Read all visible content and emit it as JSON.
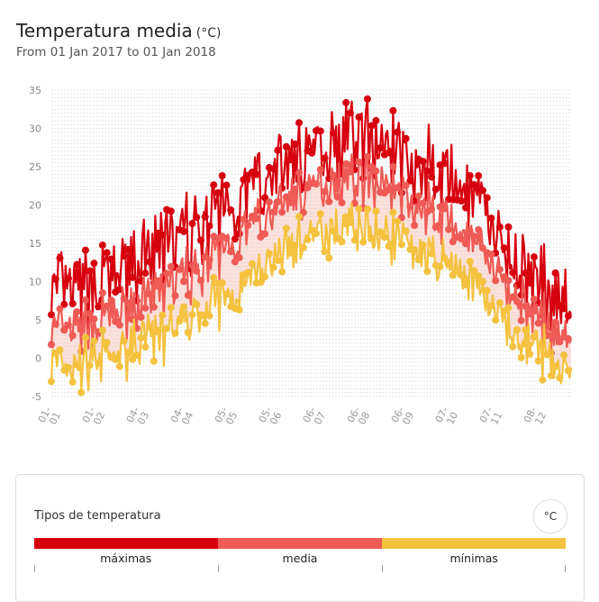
{
  "header": {
    "title": "Temperatura media",
    "unit": "(°C)",
    "subtitle": "From 01 Jan 2017 to 01 Jan 2018"
  },
  "colors": {
    "max": "#d7000f",
    "media": "#ef5a55",
    "min": "#f4c23e",
    "band": "#f6c8bf",
    "grid": "#c8c8c8",
    "axis": "#999999"
  },
  "legend": {
    "title": "Tipos de temperatura",
    "unit_button": "°C",
    "items": [
      {
        "label": "máximas",
        "color": "#d7000f",
        "share": 0.345
      },
      {
        "label": "media",
        "color": "#ef5a55",
        "share": 0.31
      },
      {
        "label": "mínimas",
        "color": "#f4c23e",
        "share": 0.345
      }
    ]
  },
  "chart_data": {
    "type": "line",
    "title": "Temperatura media",
    "x_start": "2017-01-01",
    "x_end": "2018-01-01",
    "x_tick_labels": [
      "01-01",
      "01-02",
      "04-03",
      "04-04",
      "05-05",
      "05-06",
      "06-07",
      "06-08",
      "06-09",
      "07-10",
      "07-11",
      "08-12"
    ],
    "x_tick_dates": [
      "2017-01-01",
      "2017-02-01",
      "2017-03-04",
      "2017-04-04",
      "2017-05-05",
      "2017-06-05",
      "2017-07-06",
      "2017-08-06",
      "2017-09-06",
      "2017-10-07",
      "2017-11-07",
      "2017-12-08"
    ],
    "ylim": [
      -5,
      35
    ],
    "y_ticks": [
      -5,
      0,
      5,
      10,
      15,
      20,
      25,
      30,
      35
    ],
    "grid": true,
    "monthly_avg_max": [
      8.5,
      10.5,
      14,
      17.5,
      21.5,
      26,
      28.5,
      29,
      25.5,
      22,
      14,
      8.5
    ],
    "monthly_avg_media": [
      3.5,
      5.5,
      8.5,
      12,
      16.5,
      21,
      23.5,
      23.5,
      20,
      16.5,
      9.5,
      4
    ],
    "monthly_avg_min": [
      -1.5,
      0.5,
      3,
      6,
      10,
      15,
      17,
      17,
      14,
      11,
      4,
      0
    ],
    "extremes": {
      "max": 34.5,
      "min": -5.3
    },
    "series": [
      {
        "name": "máximas",
        "key": "max"
      },
      {
        "name": "media",
        "key": "media"
      },
      {
        "name": "mínimas",
        "key": "min"
      }
    ]
  }
}
